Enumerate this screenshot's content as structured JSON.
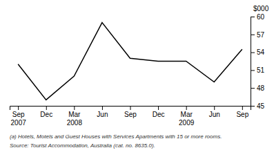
{
  "chart_data": {
    "type": "line",
    "ylabel": "$000",
    "categories": [
      "Sep\n2007",
      "Dec",
      "Mar\n2008",
      "Jun",
      "Sep",
      "Dec",
      "Mar\n2009",
      "Jun",
      "Sep"
    ],
    "values": [
      52.0,
      46.0,
      50.0,
      59.0,
      53.0,
      52.5,
      52.5,
      49.0,
      54.5
    ],
    "color": "#000000",
    "ylim": [
      45,
      60
    ],
    "yticks": [
      45,
      48,
      51,
      54,
      57,
      60
    ],
    "grid": false,
    "footnotes": [
      "(a) Hotels, Motels and Guest Houses with Services Apartments with 15 or more rooms.",
      "Source: Tourist Accommodation, Australia (cat. no. 8635.0)."
    ]
  }
}
